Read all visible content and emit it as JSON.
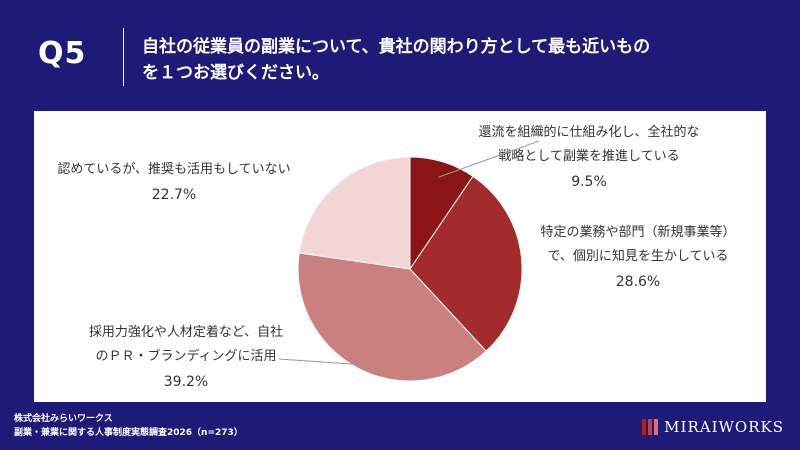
{
  "header": {
    "question_number": "Q5",
    "question_line1": "自社の従業員の副業について、貴社の関わり方として最も近いもの",
    "question_line2": "を１つお選びください。"
  },
  "chart_data": {
    "type": "pie",
    "slices": [
      {
        "label_lines": [
          "還流を組織的に仕組み化し、全社的な",
          "戦略として副業を推進している"
        ],
        "value": 9.5,
        "display": "9.5%",
        "color": "#8b1414"
      },
      {
        "label_lines": [
          "特定の業務や部門（新規事業等）",
          "で、個別に知見を生かしている"
        ],
        "value": 28.6,
        "display": "28.6%",
        "color": "#a32b2b"
      },
      {
        "label_lines": [
          "採用力強化や人材定着など、自社",
          "のＰＲ・ブランディングに活用"
        ],
        "value": 39.2,
        "display": "39.2%",
        "color": "#c9807e"
      },
      {
        "label_lines": [
          "認めているが、推奨も活用もしていない"
        ],
        "value": 22.7,
        "display": "22.7%",
        "color": "#f2d6d6"
      }
    ],
    "start_angle_deg": 0,
    "direction": "clockwise"
  },
  "footer": {
    "company": "株式会社みらいワークス",
    "survey": "副業・兼業に関する人事制度実態調査2026（n=273）",
    "brand": "MIRAIWORKS",
    "brand_colors": [
      "#b01e1e",
      "#c84040",
      "#e07070"
    ]
  }
}
